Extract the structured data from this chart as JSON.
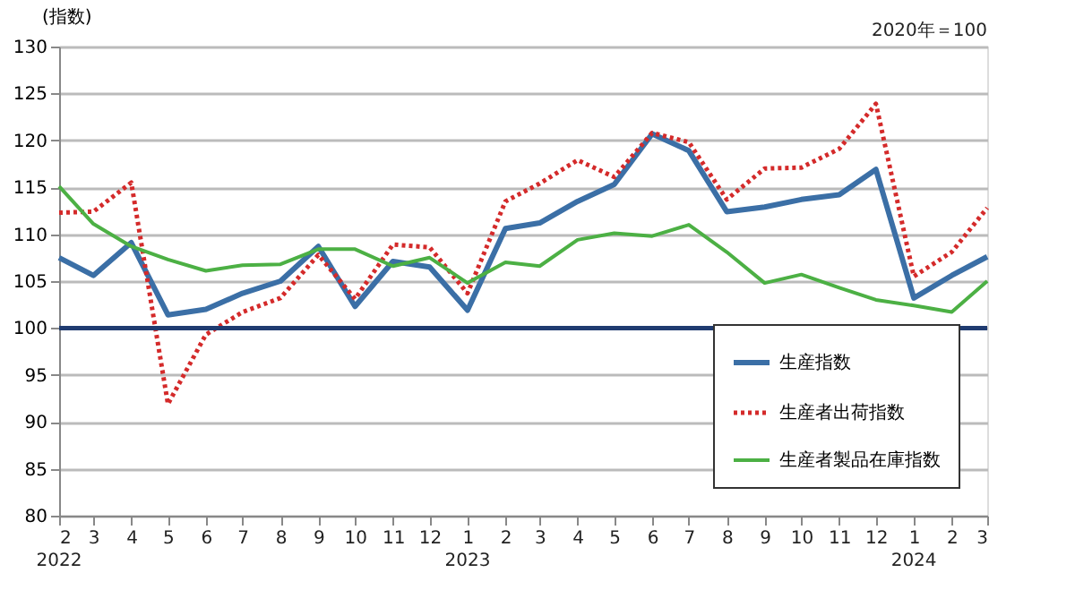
{
  "chart_data": {
    "type": "line",
    "ylabel": "(指数)",
    "annotations": [
      "2020年＝100",
      "2022",
      "2023",
      "2024"
    ],
    "x": [
      "2022-02",
      "2022-03",
      "2022-04",
      "2022-05",
      "2022-06",
      "2022-07",
      "2022-08",
      "2022-09",
      "2022-10",
      "2022-11",
      "2022-12",
      "2023-01",
      "2023-02",
      "2023-03",
      "2023-04",
      "2023-05",
      "2023-06",
      "2023-07",
      "2023-08",
      "2023-09",
      "2023-10",
      "2023-11",
      "2023-12",
      "2024-01",
      "2024-02",
      "2024-03"
    ],
    "xlim": [
      "2022-02",
      "2024-03"
    ],
    "xticks": [
      {
        "value": "2022-02",
        "label": "2"
      },
      {
        "value": "2022-03",
        "label": "3"
      },
      {
        "value": "2022-04",
        "label": "4"
      },
      {
        "value": "2022-05",
        "label": "5"
      },
      {
        "value": "2022-06",
        "label": "6"
      },
      {
        "value": "2022-07",
        "label": "7"
      },
      {
        "value": "2022-08",
        "label": "8"
      },
      {
        "value": "2022-09",
        "label": "9"
      },
      {
        "value": "2022-10",
        "label": "10"
      },
      {
        "value": "2022-11",
        "label": "11"
      },
      {
        "value": "2022-12",
        "label": "12"
      },
      {
        "value": "2023-01",
        "label": "1"
      },
      {
        "value": "2023-02",
        "label": "2"
      },
      {
        "value": "2023-03",
        "label": "3"
      },
      {
        "value": "2023-04",
        "label": "4"
      },
      {
        "value": "2023-05",
        "label": "5"
      },
      {
        "value": "2023-06",
        "label": "6"
      },
      {
        "value": "2023-07",
        "label": "7"
      },
      {
        "value": "2023-08",
        "label": "8"
      },
      {
        "value": "2023-09",
        "label": "9"
      },
      {
        "value": "2023-10",
        "label": "10"
      },
      {
        "value": "2023-11",
        "label": "11"
      },
      {
        "value": "2023-12",
        "label": "12"
      },
      {
        "value": "2024-01",
        "label": "1"
      },
      {
        "value": "2024-02",
        "label": "2"
      },
      {
        "value": "2024-03",
        "label": "3"
      }
    ],
    "ylim": [
      80,
      130
    ],
    "yticks": [
      80,
      85,
      90,
      95,
      100,
      105,
      110,
      115,
      120,
      125,
      130
    ],
    "grid": "y",
    "legend": "bottom right",
    "marker": "none",
    "series": [
      {
        "name": "生産指数",
        "color": "#3b6fa6",
        "line_style": "solid",
        "values": [
          107.5,
          105.6,
          109.1,
          101.4,
          102.0,
          103.7,
          105.0,
          108.7,
          102.3,
          107.1,
          106.5,
          101.9,
          110.6,
          111.2,
          113.5,
          115.3,
          120.7,
          118.9,
          112.4,
          112.9,
          113.7,
          114.2,
          116.9,
          103.2,
          105.6,
          107.6
        ]
      },
      {
        "name": "生産者出荷指数",
        "color": "#d42a2a",
        "line_style": "dotted",
        "values": [
          112.3,
          112.4,
          115.5,
          91.9,
          99.3,
          101.7,
          103.2,
          107.8,
          103.1,
          108.9,
          108.6,
          103.7,
          113.5,
          115.4,
          117.9,
          116.1,
          120.8,
          119.8,
          113.7,
          117.0,
          117.1,
          119.1,
          123.9,
          105.5,
          108.1,
          112.8
        ]
      },
      {
        "name": "生産者製品在庫指数",
        "color": "#4cb044",
        "line_style": "solid",
        "values": [
          115.1,
          111.1,
          108.7,
          107.3,
          106.1,
          106.7,
          106.8,
          108.4,
          108.4,
          106.6,
          107.5,
          104.8,
          107.0,
          106.6,
          109.4,
          110.1,
          109.8,
          111.0,
          108.1,
          104.8,
          105.7,
          104.3,
          103.0,
          102.4,
          101.7,
          105.0
        ]
      }
    ],
    "ref_lines": [
      {
        "axis": "y",
        "value": 100,
        "color": "#1f3b70",
        "line_style": "solid"
      }
    ]
  }
}
